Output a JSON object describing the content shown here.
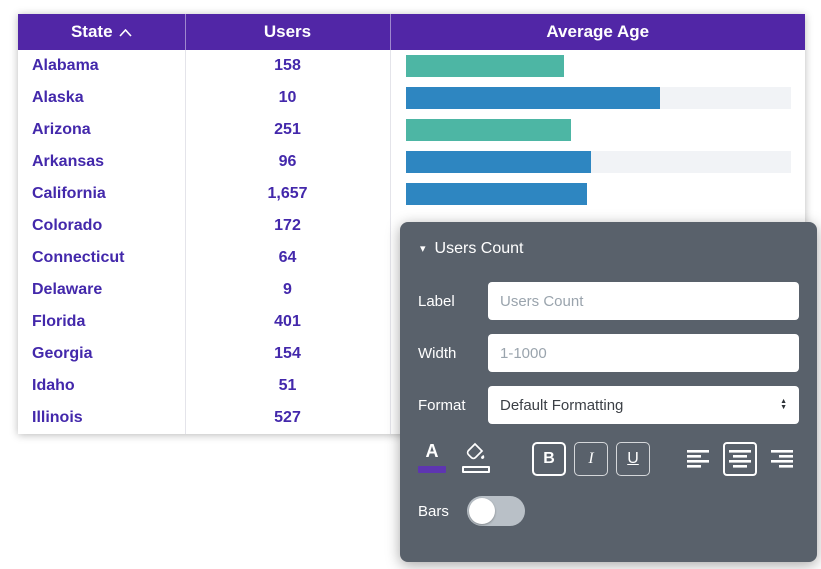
{
  "table": {
    "header": {
      "state": "State",
      "users": "Users",
      "avg_age": "Average Age",
      "state_sort": "asc"
    },
    "rows": [
      {
        "state": "Alabama",
        "users": "158",
        "bar": {
          "color": "teal",
          "pct": 41,
          "track": false
        }
      },
      {
        "state": "Alaska",
        "users": "10",
        "bar": {
          "color": "blue",
          "pct": 66,
          "track": true
        }
      },
      {
        "state": "Arizona",
        "users": "251",
        "bar": {
          "color": "teal",
          "pct": 43,
          "track": false
        }
      },
      {
        "state": "Arkansas",
        "users": "96",
        "bar": {
          "color": "blue",
          "pct": 48,
          "track": true
        }
      },
      {
        "state": "California",
        "users": "1,657",
        "bar": {
          "color": "blue",
          "pct": 47,
          "track": false
        }
      },
      {
        "state": "Colorado",
        "users": "172",
        "bar": null
      },
      {
        "state": "Connecticut",
        "users": "64",
        "bar": null
      },
      {
        "state": "Delaware",
        "users": "9",
        "bar": null
      },
      {
        "state": "Florida",
        "users": "401",
        "bar": null
      },
      {
        "state": "Georgia",
        "users": "154",
        "bar": null
      },
      {
        "state": "Idaho",
        "users": "51",
        "bar": null
      },
      {
        "state": "Illinois",
        "users": "527",
        "bar": null
      }
    ]
  },
  "panel": {
    "title": "Users Count",
    "label_field": {
      "label": "Label",
      "placeholder": "Users Count",
      "value": ""
    },
    "width_field": {
      "label": "Width",
      "placeholder": "1-1000",
      "value": ""
    },
    "format_field": {
      "label": "Format",
      "value": "Default Formatting"
    },
    "text_style": {
      "text_color": "A",
      "bold": "B",
      "italic": "I",
      "underline": "U"
    },
    "bars": {
      "label": "Bars",
      "state": "off"
    }
  },
  "colors": {
    "header_bg": "#5126a6",
    "row_text": "#4328ab",
    "teal": "#4db6a4",
    "blue": "#2e86c1",
    "track": "#f1f3f6",
    "panel_bg": "#59616b",
    "accent_purple": "#5e35b1"
  }
}
